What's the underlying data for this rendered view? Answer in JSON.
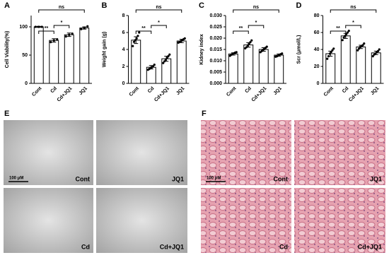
{
  "chart_data": [
    {
      "type": "bar",
      "panel": "A",
      "ylabel": "Cell Viability(%)",
      "categories": [
        "Cont",
        "Cd",
        "Cd+JQ1",
        "JQ1"
      ],
      "values": [
        100,
        76,
        86,
        98
      ],
      "errors": [
        1,
        3,
        3,
        2
      ],
      "points": [
        [
          100,
          100,
          100
        ],
        [
          73,
          76,
          78
        ],
        [
          83,
          86,
          88
        ],
        [
          96,
          98,
          101
        ]
      ],
      "ylim": [
        0,
        120
      ],
      "yticks": [
        0,
        50,
        100
      ],
      "color": "#ffffff",
      "annotations": [
        "**",
        "*",
        "ns"
      ]
    },
    {
      "type": "bar",
      "panel": "B",
      "ylabel": "Weight gain (g)",
      "categories": [
        "Cont",
        "Cd",
        "Cd+JQ1",
        "JQ1"
      ],
      "values": [
        5.1,
        1.9,
        2.9,
        5.0
      ],
      "errors": [
        0.4,
        0.2,
        0.3,
        0.2
      ],
      "points": [
        [
          4.4,
          4.9,
          5.1,
          5.3,
          5.6,
          6.0
        ],
        [
          1.6,
          1.7,
          1.8,
          1.9,
          2.0,
          2.2
        ],
        [
          2.4,
          2.6,
          2.8,
          3.0,
          3.2,
          3.4
        ],
        [
          4.8,
          4.9,
          5.0,
          5.1,
          5.2,
          5.3
        ]
      ],
      "ylim": [
        0,
        8
      ],
      "yticks": [
        0,
        2,
        4,
        6,
        8
      ],
      "color": "#ffffff",
      "annotations": [
        "**",
        "*",
        "ns"
      ]
    },
    {
      "type": "bar",
      "panel": "C",
      "ylabel": "Kidney index",
      "categories": [
        "Cont",
        "Cd",
        "Cd+JQ1",
        "JQ1"
      ],
      "values": [
        0.013,
        0.017,
        0.015,
        0.0125
      ],
      "errors": [
        0.0005,
        0.001,
        0.0008,
        0.0005
      ],
      "points": [
        [
          0.0122,
          0.0127,
          0.013,
          0.0133,
          0.0136,
          0.0138
        ],
        [
          0.0155,
          0.016,
          0.0168,
          0.0175,
          0.0182,
          0.019
        ],
        [
          0.0138,
          0.0143,
          0.0148,
          0.0152,
          0.0157,
          0.0162
        ],
        [
          0.0118,
          0.012,
          0.0123,
          0.0126,
          0.0129,
          0.0132
        ]
      ],
      "ylim": [
        0,
        0.03
      ],
      "yticks": [
        {
          "value": 0,
          "label": "0.000"
        },
        {
          "value": 0.005,
          "label": "0.005"
        },
        {
          "value": 0.01,
          "label": "0.010"
        },
        {
          "value": 0.015,
          "label": "0.015"
        },
        {
          "value": 0.02,
          "label": "0.020"
        },
        {
          "value": 0.025,
          "label": "0.025"
        },
        {
          "value": 0.03,
          "label": "0.030"
        }
      ],
      "color": "#ffffff",
      "annotations": [
        "**",
        "*",
        "ns"
      ]
    },
    {
      "type": "bar",
      "panel": "D",
      "ylabel": "Scr (μmol/L)",
      "categories": [
        "Cont",
        "Cd",
        "Cd+JQ1",
        "JQ1"
      ],
      "values": [
        35,
        56,
        43,
        36
      ],
      "errors": [
        3,
        3,
        2,
        2
      ],
      "points": [
        [
          29,
          32,
          35,
          37,
          39,
          41
        ],
        [
          51,
          54,
          56,
          58,
          60,
          62
        ],
        [
          39,
          41,
          43,
          44,
          45,
          47
        ],
        [
          32,
          34,
          35,
          37,
          38,
          40
        ]
      ],
      "ylim": [
        0,
        80
      ],
      "yticks": [
        0,
        20,
        40,
        60,
        80
      ],
      "color": "#ffffff",
      "annotations": [
        "**",
        "*",
        "ns"
      ]
    }
  ],
  "image_panels": [
    {
      "panel": "E",
      "scale_bar": "100 μM",
      "labels": [
        "Cont",
        "JQ1",
        "Cd",
        "Cd+JQ1"
      ]
    },
    {
      "panel": "F",
      "scale_bar": "100 μM",
      "labels": [
        "Cont",
        "JQ1",
        "Cd",
        "Cd+JQ1"
      ]
    }
  ]
}
